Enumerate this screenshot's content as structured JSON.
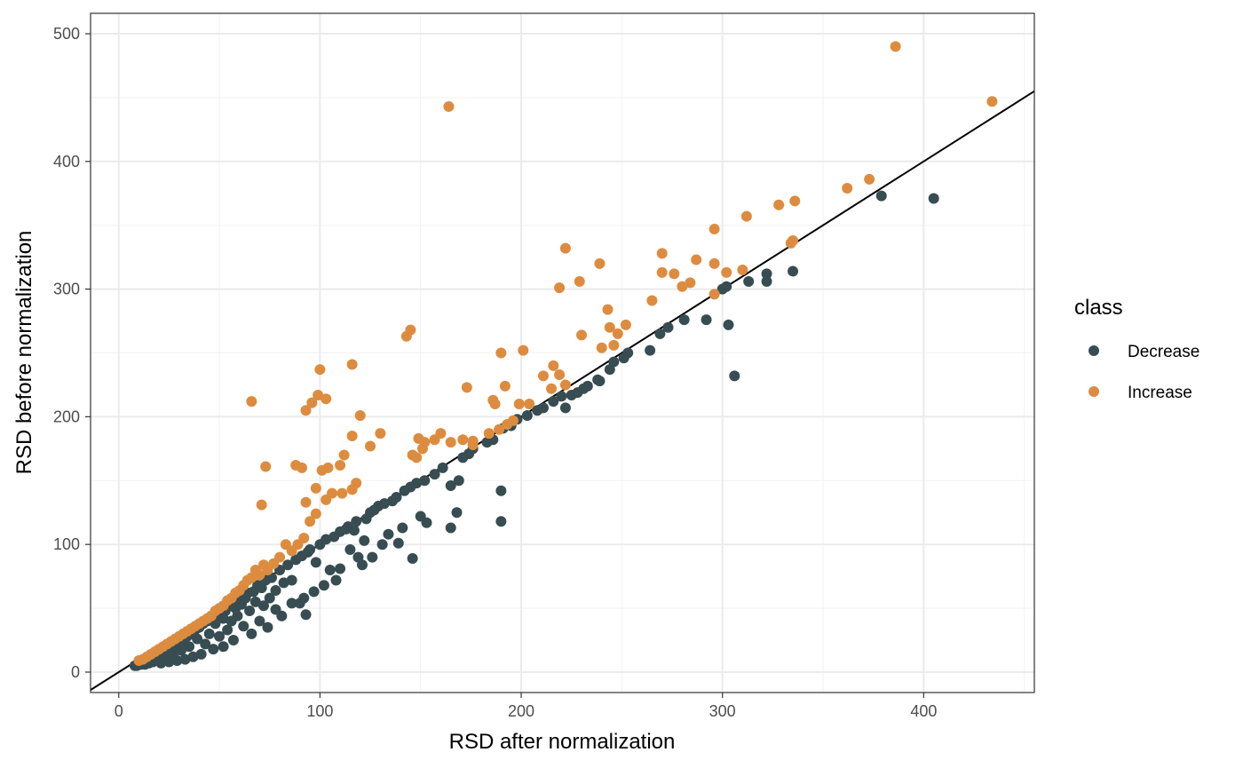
{
  "chart_data": {
    "type": "scatter",
    "title": "",
    "xlabel": "RSD after normalization",
    "ylabel": "RSD before normalization",
    "xlim": [
      -14,
      455
    ],
    "ylim": [
      -16,
      516
    ],
    "x_ticks": [
      0,
      100,
      200,
      300,
      400
    ],
    "y_ticks": [
      0,
      100,
      200,
      300,
      400,
      500
    ],
    "grid": true,
    "legend": {
      "title": "class",
      "position": "right"
    },
    "reference_line": {
      "slope": 1,
      "intercept": 0,
      "color": "#000000"
    },
    "series": [
      {
        "name": "Decrease",
        "color": "#374d52",
        "points": [
          [
            405,
            371
          ],
          [
            379,
            373
          ],
          [
            335,
            314
          ],
          [
            322,
            312
          ],
          [
            322,
            306
          ],
          [
            313,
            306
          ],
          [
            302,
            302
          ],
          [
            300,
            300
          ],
          [
            303,
            272
          ],
          [
            306,
            232
          ],
          [
            292,
            276
          ],
          [
            281,
            276
          ],
          [
            273,
            270
          ],
          [
            269,
            265
          ],
          [
            264,
            252
          ],
          [
            253,
            250
          ],
          [
            251,
            246
          ],
          [
            246,
            243
          ],
          [
            244,
            237
          ],
          [
            238,
            229
          ],
          [
            239,
            228
          ],
          [
            233,
            224
          ],
          [
            231,
            222
          ],
          [
            228,
            219
          ],
          [
            225,
            217
          ],
          [
            222,
            207
          ],
          [
            220,
            216
          ],
          [
            216,
            212
          ],
          [
            211,
            207
          ],
          [
            208,
            205
          ],
          [
            203,
            201
          ],
          [
            198,
            198
          ],
          [
            195,
            193
          ],
          [
            191,
            191
          ],
          [
            190,
            142
          ],
          [
            190,
            118
          ],
          [
            186,
            182
          ],
          [
            183,
            180
          ],
          [
            176,
            175
          ],
          [
            174,
            171
          ],
          [
            171,
            168
          ],
          [
            169,
            150
          ],
          [
            168,
            125
          ],
          [
            165,
            146
          ],
          [
            165,
            113
          ],
          [
            161,
            160
          ],
          [
            157,
            155
          ],
          [
            153,
            117
          ],
          [
            150,
            122
          ],
          [
            152,
            150
          ],
          [
            148,
            148
          ],
          [
            145,
            145
          ],
          [
            146,
            89
          ],
          [
            141,
            113
          ],
          [
            142,
            142
          ],
          [
            138,
            137
          ],
          [
            139,
            101
          ],
          [
            134,
            108
          ],
          [
            136,
            134
          ],
          [
            132,
            132
          ],
          [
            131,
            100
          ],
          [
            129,
            130
          ],
          [
            127,
            127
          ],
          [
            126,
            90
          ],
          [
            125,
            125
          ],
          [
            122,
            103
          ],
          [
            123,
            120
          ],
          [
            121,
            84
          ],
          [
            119,
            90
          ],
          [
            118,
            118
          ],
          [
            117,
            111
          ],
          [
            115,
            96
          ],
          [
            114,
            114
          ],
          [
            110,
            81
          ],
          [
            113,
            112
          ],
          [
            108,
            72
          ],
          [
            110,
            110
          ],
          [
            107,
            106
          ],
          [
            105,
            80
          ],
          [
            103,
            104
          ],
          [
            102,
            68
          ],
          [
            100,
            100
          ],
          [
            98,
            86
          ],
          [
            97,
            63
          ],
          [
            95,
            96
          ],
          [
            93,
            45
          ],
          [
            94,
            94
          ],
          [
            92,
            58
          ],
          [
            91,
            91
          ],
          [
            90,
            54
          ],
          [
            88,
            88
          ],
          [
            86,
            72
          ],
          [
            86,
            54
          ],
          [
            84,
            84
          ],
          [
            82,
            70
          ],
          [
            81,
            44
          ],
          [
            80,
            80
          ],
          [
            78,
            64
          ],
          [
            78,
            49
          ],
          [
            76,
            74
          ],
          [
            75,
            58
          ],
          [
            74,
            35
          ],
          [
            73,
            72
          ],
          [
            72,
            52
          ],
          [
            71,
            66
          ],
          [
            70,
            40
          ],
          [
            69,
            68
          ],
          [
            68,
            55
          ],
          [
            67,
            63
          ],
          [
            66,
            30
          ],
          [
            65,
            48
          ],
          [
            64,
            62
          ],
          [
            63,
            58
          ],
          [
            62,
            36
          ],
          [
            61,
            53
          ],
          [
            60,
            60
          ],
          [
            59,
            44
          ],
          [
            58,
            50
          ],
          [
            57,
            25
          ],
          [
            57,
            55
          ],
          [
            56,
            40
          ],
          [
            55,
            52
          ],
          [
            54,
            33
          ],
          [
            53,
            48
          ],
          [
            52,
            20
          ],
          [
            52,
            42
          ],
          [
            51,
            49
          ],
          [
            50,
            28
          ],
          [
            49,
            45
          ],
          [
            48,
            38
          ],
          [
            47,
            18
          ],
          [
            46,
            44
          ],
          [
            45,
            30
          ],
          [
            44,
            40
          ],
          [
            43,
            22
          ],
          [
            42,
            38
          ],
          [
            41,
            14
          ],
          [
            40,
            35
          ],
          [
            39,
            26
          ],
          [
            38,
            33
          ],
          [
            37,
            12
          ],
          [
            36,
            30
          ],
          [
            35,
            20
          ],
          [
            34,
            28
          ],
          [
            33,
            10
          ],
          [
            32,
            25
          ],
          [
            31,
            17
          ],
          [
            30,
            22
          ],
          [
            29,
            9
          ],
          [
            28,
            20
          ],
          [
            27,
            14
          ],
          [
            26,
            18
          ],
          [
            25,
            8
          ],
          [
            24,
            15
          ],
          [
            23,
            11
          ],
          [
            22,
            13
          ],
          [
            21,
            7
          ],
          [
            20,
            12
          ],
          [
            19,
            9
          ],
          [
            18,
            10
          ],
          [
            17,
            8
          ],
          [
            16,
            9
          ],
          [
            15,
            7
          ],
          [
            14,
            8
          ],
          [
            13,
            6
          ],
          [
            12,
            7
          ],
          [
            11,
            6
          ],
          [
            10,
            6
          ],
          [
            9,
            5
          ],
          [
            8,
            5
          ]
        ]
      },
      {
        "name": "Increase",
        "color": "#dd8c3f",
        "points": [
          [
            386,
            490
          ],
          [
            434,
            447
          ],
          [
            164,
            443
          ],
          [
            373,
            386
          ],
          [
            362,
            379
          ],
          [
            336,
            369
          ],
          [
            328,
            366
          ],
          [
            312,
            357
          ],
          [
            296,
            347
          ],
          [
            335,
            338
          ],
          [
            334,
            336
          ],
          [
            222,
            332
          ],
          [
            239,
            320
          ],
          [
            270,
            328
          ],
          [
            287,
            323
          ],
          [
            296,
            320
          ],
          [
            270,
            313
          ],
          [
            276,
            312
          ],
          [
            229,
            306
          ],
          [
            219,
            301
          ],
          [
            284,
            305
          ],
          [
            280,
            302
          ],
          [
            296,
            296
          ],
          [
            310,
            315
          ],
          [
            302,
            313
          ],
          [
            243,
            284
          ],
          [
            265,
            291
          ],
          [
            252,
            272
          ],
          [
            244,
            270
          ],
          [
            248,
            265
          ],
          [
            246,
            256
          ],
          [
            240,
            254
          ],
          [
            230,
            264
          ],
          [
            190,
            250
          ],
          [
            201,
            252
          ],
          [
            216,
            240
          ],
          [
            219,
            233
          ],
          [
            222,
            225
          ],
          [
            215,
            222
          ],
          [
            211,
            232
          ],
          [
            192,
            224
          ],
          [
            173,
            223
          ],
          [
            186,
            213
          ],
          [
            187,
            210
          ],
          [
            199,
            210
          ],
          [
            204,
            210
          ],
          [
            196,
            197
          ],
          [
            193,
            194
          ],
          [
            189,
            190
          ],
          [
            184,
            187
          ],
          [
            176,
            181
          ],
          [
            176,
            178
          ],
          [
            171,
            182
          ],
          [
            165,
            180
          ],
          [
            160,
            187
          ],
          [
            157,
            182
          ],
          [
            152,
            180
          ],
          [
            149,
            183
          ],
          [
            151,
            175
          ],
          [
            148,
            168
          ],
          [
            146,
            170
          ],
          [
            143,
            263
          ],
          [
            145,
            268
          ],
          [
            116,
            241
          ],
          [
            100,
            237
          ],
          [
            99,
            217
          ],
          [
            96,
            211
          ],
          [
            93,
            205
          ],
          [
            103,
            214
          ],
          [
            120,
            201
          ],
          [
            130,
            187
          ],
          [
            125,
            177
          ],
          [
            116,
            185
          ],
          [
            112,
            170
          ],
          [
            110,
            162
          ],
          [
            104,
            160
          ],
          [
            101,
            158
          ],
          [
            98,
            144
          ],
          [
            93,
            133
          ],
          [
            88,
            162
          ],
          [
            91,
            160
          ],
          [
            73,
            161
          ],
          [
            71,
            131
          ],
          [
            66,
            212
          ],
          [
            118,
            148
          ],
          [
            116,
            143
          ],
          [
            111,
            140
          ],
          [
            106,
            140
          ],
          [
            103,
            135
          ],
          [
            98,
            124
          ],
          [
            95,
            118
          ],
          [
            92,
            105
          ],
          [
            89,
            100
          ],
          [
            86,
            95
          ],
          [
            83,
            100
          ],
          [
            80,
            90
          ],
          [
            77,
            85
          ],
          [
            74,
            80
          ],
          [
            72,
            84
          ],
          [
            70,
            76
          ],
          [
            68,
            80
          ],
          [
            66,
            74
          ],
          [
            64,
            72
          ],
          [
            62,
            68
          ],
          [
            60,
            64
          ],
          [
            58,
            62
          ],
          [
            56,
            58
          ],
          [
            54,
            56
          ],
          [
            52,
            52
          ],
          [
            50,
            50
          ],
          [
            48,
            48
          ],
          [
            46,
            44
          ],
          [
            44,
            42
          ],
          [
            42,
            40
          ],
          [
            40,
            38
          ],
          [
            38,
            36
          ],
          [
            36,
            34
          ],
          [
            34,
            32
          ],
          [
            32,
            30
          ],
          [
            30,
            28
          ],
          [
            28,
            26
          ],
          [
            26,
            24
          ],
          [
            24,
            22
          ],
          [
            22,
            20
          ],
          [
            20,
            18
          ],
          [
            18,
            16
          ],
          [
            16,
            14
          ],
          [
            14,
            12
          ],
          [
            12,
            10
          ],
          [
            10,
            9
          ]
        ]
      }
    ]
  }
}
